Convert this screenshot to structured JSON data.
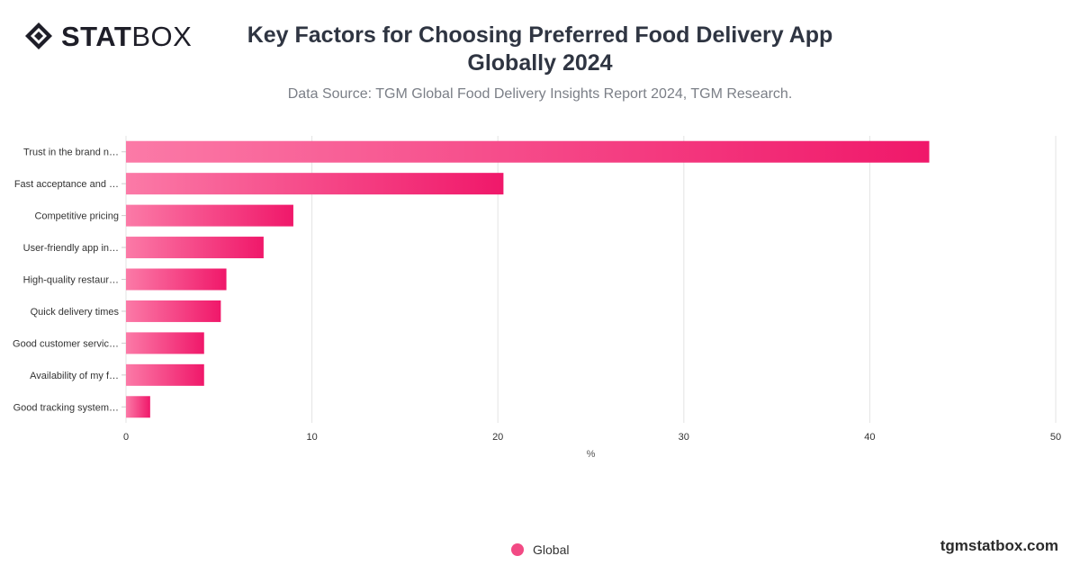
{
  "brand": {
    "logo_text_bold": "STAT",
    "logo_text_light": "BOX",
    "logo_icon": "statbox-diamond-icon",
    "website": "tgmstatbox.com"
  },
  "chart_data": {
    "type": "bar",
    "orientation": "horizontal",
    "title": "Key Factors for Choosing Preferred Food Delivery App Globally 2024",
    "subtitle": "Data Source: TGM Global Food Delivery Insights Report 2024, TGM Research.",
    "categories": [
      "Trust in the brand n…",
      "Fast acceptance and …",
      "Competitive pricing",
      "User-friendly app in…",
      "High-quality restaur…",
      "Quick delivery times",
      "Good customer servic…",
      "Availability of my f…",
      "Good tracking system…"
    ],
    "series": [
      {
        "name": "Global",
        "values": [
          43.2,
          20.3,
          9.0,
          7.4,
          5.4,
          5.1,
          4.2,
          4.2,
          1.3
        ]
      }
    ],
    "xlabel": "%",
    "ylabel": "",
    "xlim": [
      0,
      50
    ],
    "xticks": [
      0,
      10,
      20,
      30,
      40,
      50
    ],
    "grid": true,
    "legend_position": "bottom-center",
    "colors": {
      "bar_start": "#fb7aa7",
      "bar_end": "#f0186a",
      "legend": "#f24a84",
      "grid": "#e3e3e3"
    }
  }
}
